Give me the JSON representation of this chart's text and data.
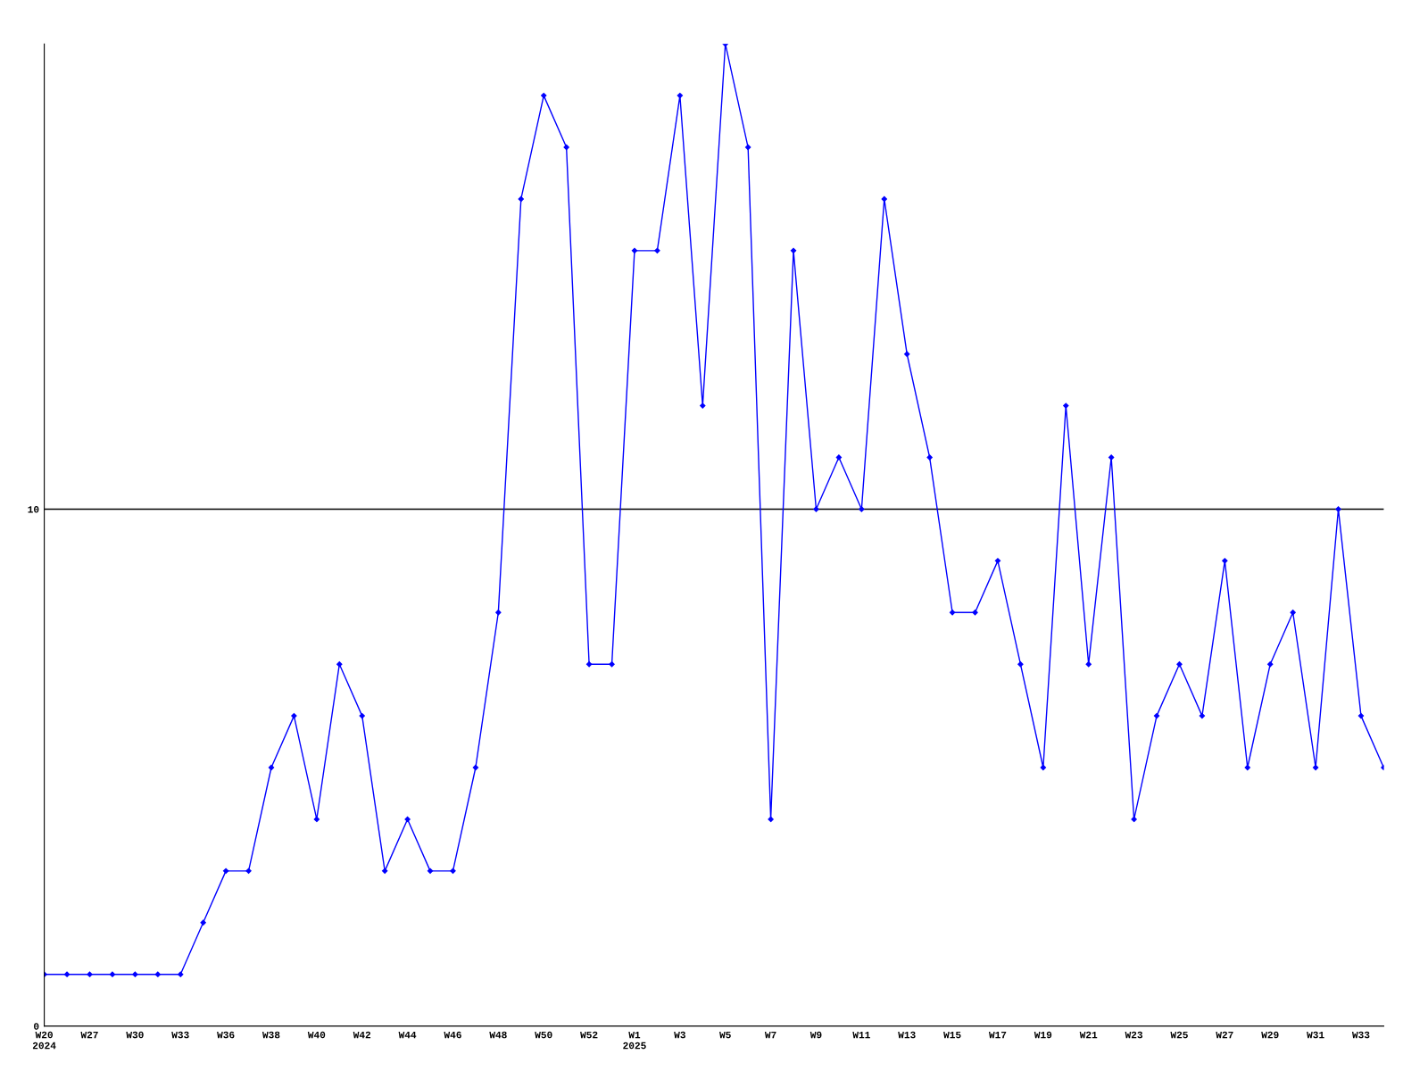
{
  "chart_data": {
    "type": "line",
    "categories": [
      "W20\n2024",
      null,
      "W27",
      null,
      "W30",
      null,
      "W33",
      null,
      "W36",
      null,
      "W38",
      null,
      "W40",
      null,
      "W42",
      null,
      "W44",
      null,
      "W46",
      null,
      "W48",
      null,
      "W50",
      null,
      "W52",
      null,
      "W1\n2025",
      null,
      "W3",
      null,
      "W5",
      null,
      "W7",
      null,
      "W9",
      null,
      "W11",
      null,
      "W13",
      null,
      "W15",
      null,
      "W17",
      null,
      "W19",
      null,
      "W21",
      null,
      "W23",
      null,
      "W25",
      null,
      "W27",
      null,
      "W29",
      null,
      "W31",
      null,
      "W33",
      null
    ],
    "series": [
      {
        "color": "#0000ff",
        "values": [
          1,
          1,
          1,
          1,
          1,
          1,
          1,
          2,
          3,
          3,
          5,
          6,
          4,
          7,
          6,
          3,
          4,
          3,
          3,
          5,
          8,
          16,
          18,
          17,
          7,
          7,
          15,
          15,
          18,
          12,
          19,
          17,
          4,
          15,
          10,
          11,
          10,
          16,
          13,
          11,
          8,
          8,
          9,
          7,
          5,
          12,
          7,
          11,
          4,
          6,
          7,
          6,
          9,
          5,
          7,
          8,
          5,
          10,
          6,
          5
        ]
      }
    ],
    "ylim": [
      0,
      19
    ],
    "yticks": [
      0,
      10
    ],
    "grid": "y",
    "marker": "diamond",
    "line_style": "solid"
  }
}
